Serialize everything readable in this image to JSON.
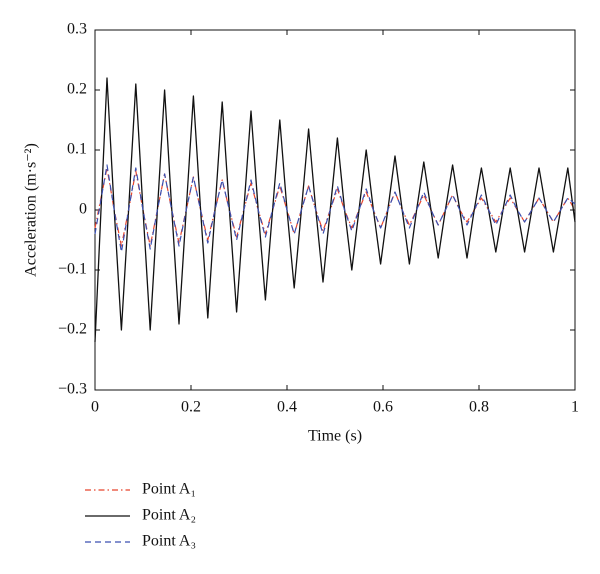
{
  "chart_data": {
    "type": "line",
    "xlabel": "Time (s)",
    "ylabel": "Acceleration (m·s⁻²)",
    "xlim": [
      0,
      1
    ],
    "ylim": [
      -0.3,
      0.3
    ],
    "xticks": [
      0,
      0.2,
      0.4,
      0.6,
      0.8,
      1
    ],
    "yticks": [
      {
        "value": -0.3,
        "label": "−0.3"
      },
      {
        "value": -0.2,
        "label": "−0.2"
      },
      {
        "value": -0.1,
        "label": "−0.1"
      },
      0,
      0.1,
      0.2,
      0.3
    ],
    "legend": "bottom-left",
    "x": [
      0,
      0.025,
      0.04,
      0.055,
      0.07,
      0.085,
      0.1,
      0.115,
      0.13,
      0.145,
      0.16,
      0.175,
      0.19,
      0.205,
      0.22,
      0.235,
      0.25,
      0.265,
      0.28,
      0.295,
      0.31,
      0.325,
      0.34,
      0.355,
      0.37,
      0.385,
      0.4,
      0.415,
      0.43,
      0.445,
      0.46,
      0.475,
      0.49,
      0.505,
      0.52,
      0.535,
      0.55,
      0.565,
      0.58,
      0.595,
      0.61,
      0.625,
      0.64,
      0.655,
      0.67,
      0.685,
      0.7,
      0.715,
      0.73,
      0.745,
      0.76,
      0.775,
      0.79,
      0.805,
      0.82,
      0.835,
      0.85,
      0.865,
      0.88,
      0.895,
      0.91,
      0.925,
      0.94,
      0.955,
      0.97,
      0.985,
      1
    ],
    "series": [
      {
        "name": "Point A₁",
        "color": "#e8452c",
        "dash": "dashdot",
        "values": [
          -0.03,
          0.07,
          0,
          -0.06,
          0,
          0.065,
          0,
          -0.06,
          0,
          0.06,
          0,
          -0.055,
          0,
          0.055,
          0,
          -0.05,
          0,
          0.05,
          0,
          -0.045,
          0,
          0.045,
          0,
          -0.04,
          0,
          0.04,
          0,
          -0.04,
          0,
          0.04,
          0,
          -0.035,
          0,
          0.035,
          0,
          -0.03,
          0,
          0.03,
          0,
          -0.03,
          0,
          0.03,
          0,
          -0.025,
          0,
          0.025,
          0,
          -0.025,
          0,
          0.025,
          0,
          -0.02,
          0,
          0.02,
          0,
          -0.02,
          0,
          0.02,
          0,
          -0.02,
          0,
          0.02,
          0,
          -0.02,
          0,
          0.02,
          0
        ]
      },
      {
        "name": "Point A₂",
        "color": "#111111",
        "dash": "solid",
        "values": [
          -0.22,
          0.22,
          0,
          -0.2,
          0,
          0.21,
          0,
          -0.2,
          0,
          0.2,
          0,
          -0.19,
          0,
          0.19,
          0,
          -0.18,
          0,
          0.18,
          0,
          -0.17,
          0,
          0.165,
          0,
          -0.15,
          0,
          0.15,
          0,
          -0.13,
          0,
          0.135,
          0,
          -0.12,
          0,
          0.12,
          0,
          -0.1,
          0,
          0.1,
          0,
          -0.09,
          0,
          0.09,
          0,
          -0.09,
          0,
          0.08,
          0,
          -0.08,
          0,
          0.075,
          0,
          -0.08,
          0,
          0.07,
          0,
          -0.07,
          0,
          0.07,
          0,
          -0.07,
          0,
          0.07,
          0,
          -0.07,
          0,
          0.07,
          -0.02
        ]
      },
      {
        "name": "Point A₃",
        "color": "#3a4fb0",
        "dash": "dashed",
        "values": [
          -0.04,
          0.075,
          0,
          -0.07,
          0,
          0.07,
          0,
          -0.065,
          0,
          0.06,
          0,
          -0.06,
          0,
          0.055,
          0,
          -0.055,
          0,
          0.05,
          0,
          -0.05,
          0,
          0.05,
          0,
          -0.045,
          0,
          0.045,
          0,
          -0.04,
          0,
          0.04,
          0,
          -0.04,
          0,
          0.04,
          0,
          -0.035,
          0,
          0.035,
          0,
          -0.03,
          0,
          0.03,
          0,
          -0.03,
          0,
          0.03,
          0,
          -0.025,
          0,
          0.025,
          0,
          -0.025,
          0,
          0.025,
          0,
          -0.025,
          0,
          0.025,
          0,
          -0.02,
          0,
          0.02,
          0,
          -0.02,
          0,
          0.02,
          0.01
        ]
      }
    ]
  }
}
